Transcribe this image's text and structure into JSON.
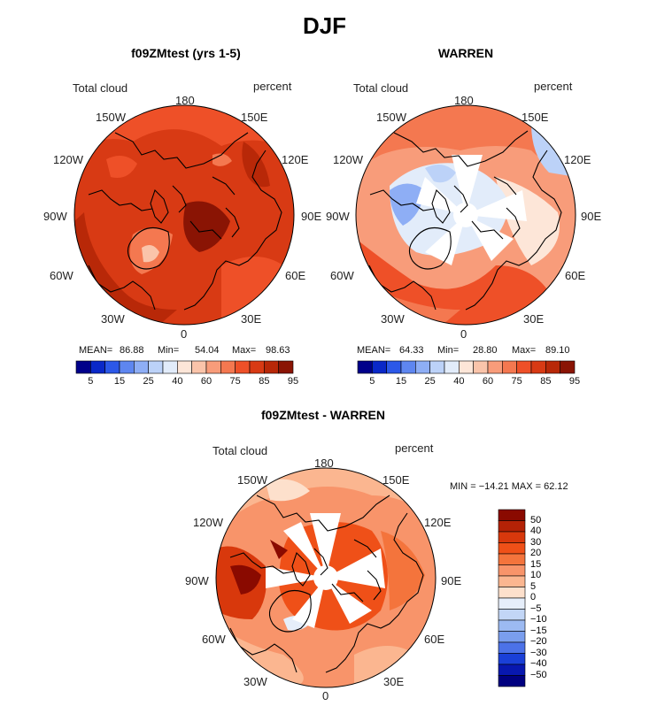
{
  "title": "DJF",
  "panels": [
    {
      "title": "f09ZMtest (yrs 1-5)",
      "variable": "Total cloud",
      "units": "percent",
      "stats": {
        "mean_label": "MEAN=",
        "mean": "86.88",
        "min_label": "Min=",
        "min": "54.04",
        "max_label": "Max=",
        "max": "98.63"
      },
      "lon_labels": {
        "n": "180",
        "nw": "150W",
        "ne": "150E",
        "wnw": "120W",
        "ene": "120E",
        "w": "90W",
        "e": "90E",
        "wsw": "60W",
        "esw": "60E",
        "sw": "30W",
        "se": "30E",
        "s": "0"
      },
      "colorbar_ticks": [
        "5",
        "15",
        "25",
        "40",
        "60",
        "75",
        "85",
        "95"
      ]
    },
    {
      "title": "WARREN",
      "variable": "Total cloud",
      "units": "percent",
      "stats": {
        "mean_label": "MEAN=",
        "mean": "64.33",
        "min_label": "Min=",
        "min": "28.80",
        "max_label": "Max=",
        "max": "89.10"
      },
      "lon_labels": {
        "n": "180",
        "nw": "150W",
        "ne": "150E",
        "wnw": "120W",
        "ene": "120E",
        "w": "90W",
        "e": "90E",
        "wsw": "60W",
        "esw": "60E",
        "sw": "30W",
        "se": "30E",
        "s": "0"
      },
      "colorbar_ticks": [
        "5",
        "15",
        "25",
        "40",
        "60",
        "75",
        "85",
        "95"
      ]
    },
    {
      "title": "f09ZMtest - WARREN",
      "variable": "Total cloud",
      "units": "percent",
      "stats_text": "MIN = −14.21  MAX =  62.12",
      "lon_labels": {
        "n": "180",
        "nw": "150W",
        "ne": "150E",
        "wnw": "120W",
        "ene": "120E",
        "w": "90W",
        "e": "90E",
        "wsw": "60W",
        "esw": "60E",
        "sw": "30W",
        "se": "30E",
        "s": "0"
      },
      "colorbar_ticks": [
        "50",
        "40",
        "30",
        "20",
        "15",
        "10",
        "5",
        "0",
        "−5",
        "−10",
        "−15",
        "−20",
        "−30",
        "−40",
        "−50"
      ]
    }
  ],
  "colors": {
    "abs_scale": [
      "#00008a",
      "#0a28c8",
      "#2c58e8",
      "#5e86f0",
      "#8eaef5",
      "#bcd2f8",
      "#e2ecfa",
      "#fde6d8",
      "#fac4aa",
      "#f89c7a",
      "#f47850",
      "#ee5028",
      "#d83a14",
      "#b82808",
      "#8a1404"
    ],
    "diff_scale": [
      "#8a0a00",
      "#b42206",
      "#d8380c",
      "#ef5018",
      "#f4743c",
      "#f8946a",
      "#fbb690",
      "#fde0cc",
      "#e6eefa",
      "#c2d6f6",
      "#9cbaf2",
      "#7a9eee",
      "#4c72e8",
      "#1a40d8",
      "#0818b0",
      "#000080"
    ]
  }
}
